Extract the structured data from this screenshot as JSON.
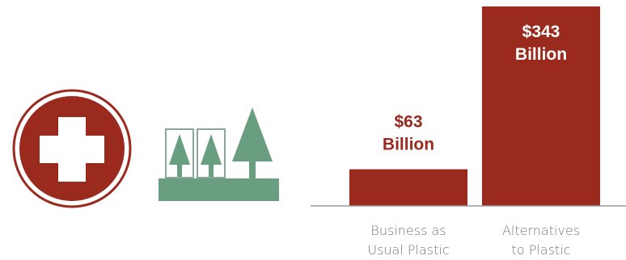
{
  "colors": {
    "bar": "#9a2a1e",
    "value_label": "#9a2a1e",
    "value_label_inside": "#ffffff",
    "tree": "#6a9e80",
    "tree_box_stroke": "#8aa898",
    "icon_ring": "#9a2a1e",
    "axis": "#9a9a9a",
    "category_text": "#777777"
  },
  "icons": {
    "health": "medical-cross-icon",
    "environment": "forest-icon"
  },
  "chart_data": {
    "type": "bar",
    "title": "",
    "xlabel": "",
    "ylabel": "",
    "ylim": [
      0,
      343
    ],
    "grid": false,
    "legend": "none",
    "categories": [
      [
        "Business as",
        "Usual Plastic"
      ],
      [
        "Alternatives",
        "to Plastic"
      ]
    ],
    "values": [
      63,
      343
    ],
    "value_labels": [
      [
        "$63",
        "Billion"
      ],
      [
        "$343",
        "Billion"
      ]
    ],
    "value_label_position": [
      "above",
      "inside"
    ]
  }
}
